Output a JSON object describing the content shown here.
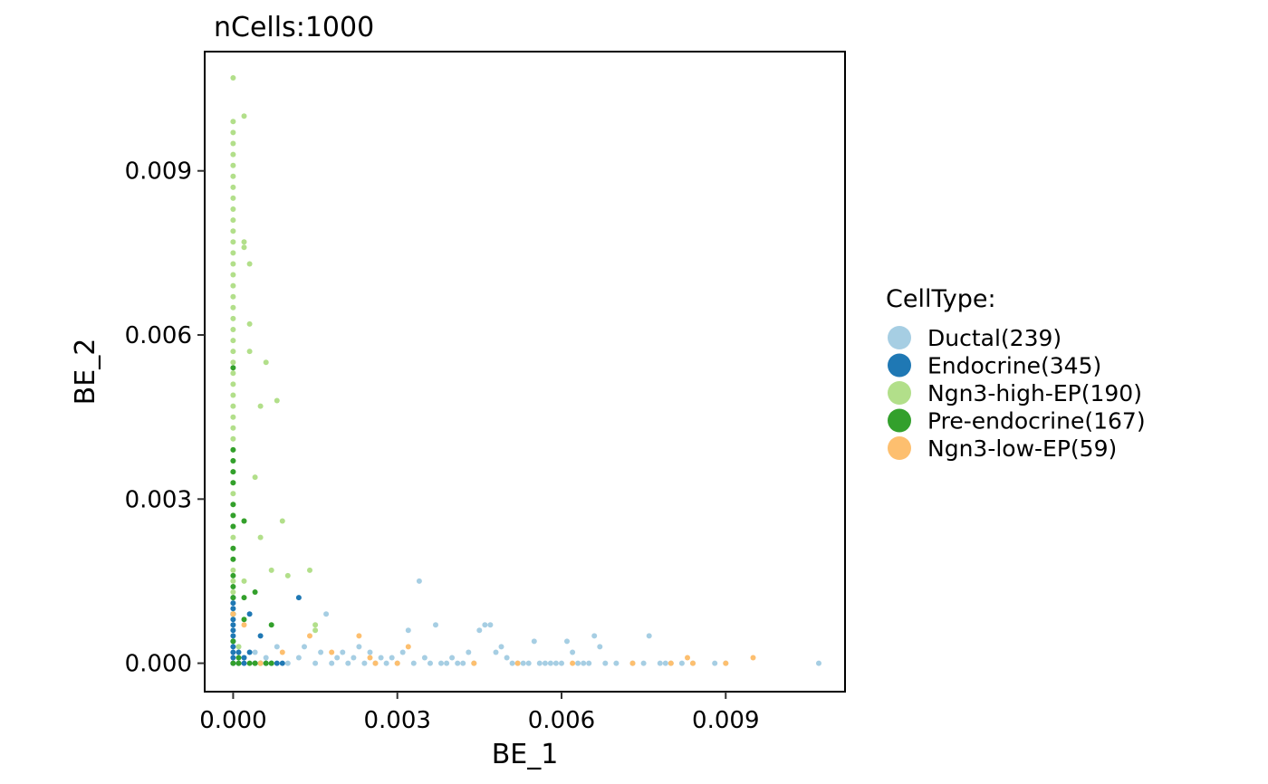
{
  "chart_data": {
    "type": "scatter",
    "title": "nCells:1000",
    "xlabel": "BE_1",
    "ylabel": "BE_2",
    "xlim": [
      -0.00052,
      0.01118
    ],
    "ylim": [
      -0.00052,
      0.01118
    ],
    "x_ticks": [
      0.0,
      0.003,
      0.006,
      0.009
    ],
    "y_ticks": [
      0.0,
      0.003,
      0.006,
      0.009
    ],
    "x_tick_labels": [
      "0.000",
      "0.003",
      "0.006",
      "0.009"
    ],
    "y_tick_labels": [
      "0.000",
      "0.003",
      "0.006",
      "0.009"
    ],
    "grid": false,
    "legend": {
      "title": "CellType:",
      "placement": "right"
    },
    "series": [
      {
        "name": "Ductal(239)",
        "color": "#A6CEE3",
        "points": [
          [
            0.0,
            0.0
          ],
          [
            0.0004,
            0.0002
          ],
          [
            0.0006,
            0.0001
          ],
          [
            0.0008,
            0.0003
          ],
          [
            0.001,
            0.0
          ],
          [
            0.0012,
            0.0001
          ],
          [
            0.0013,
            0.0003
          ],
          [
            0.0015,
            0.0
          ],
          [
            0.0016,
            0.0002
          ],
          [
            0.0017,
            0.0009
          ],
          [
            0.0018,
            0.0
          ],
          [
            0.0019,
            0.0001
          ],
          [
            0.002,
            0.0002
          ],
          [
            0.0021,
            0.0
          ],
          [
            0.0022,
            0.0001
          ],
          [
            0.0023,
            0.0003
          ],
          [
            0.0024,
            0.0
          ],
          [
            0.0025,
            0.0002
          ],
          [
            0.0026,
            0.0
          ],
          [
            0.0027,
            0.0001
          ],
          [
            0.0028,
            0.0
          ],
          [
            0.0029,
            0.0001
          ],
          [
            0.003,
            0.0
          ],
          [
            0.0031,
            0.0002
          ],
          [
            0.0032,
            0.0006
          ],
          [
            0.0033,
            0.0
          ],
          [
            0.0034,
            0.0015
          ],
          [
            0.0035,
            0.0001
          ],
          [
            0.0036,
            0.0
          ],
          [
            0.0037,
            0.0007
          ],
          [
            0.0038,
            0.0
          ],
          [
            0.0039,
            0.0
          ],
          [
            0.004,
            0.0001
          ],
          [
            0.0041,
            0.0
          ],
          [
            0.0042,
            0.0
          ],
          [
            0.0043,
            0.0002
          ],
          [
            0.0044,
            0.0
          ],
          [
            0.0045,
            0.0006
          ],
          [
            0.0046,
            0.0007
          ],
          [
            0.0047,
            0.0007
          ],
          [
            0.0048,
            0.0002
          ],
          [
            0.0049,
            0.0003
          ],
          [
            0.005,
            0.0001
          ],
          [
            0.0051,
            0.0
          ],
          [
            0.0052,
            0.0
          ],
          [
            0.0053,
            0.0
          ],
          [
            0.0054,
            0.0
          ],
          [
            0.0055,
            0.0004
          ],
          [
            0.0056,
            0.0
          ],
          [
            0.0057,
            0.0
          ],
          [
            0.0058,
            0.0
          ],
          [
            0.0059,
            0.0
          ],
          [
            0.006,
            0.0
          ],
          [
            0.0061,
            0.0004
          ],
          [
            0.0062,
            0.0002
          ],
          [
            0.0063,
            0.0
          ],
          [
            0.0064,
            0.0
          ],
          [
            0.0065,
            0.0
          ],
          [
            0.0066,
            0.0005
          ],
          [
            0.0067,
            0.0003
          ],
          [
            0.0068,
            0.0
          ],
          [
            0.007,
            0.0
          ],
          [
            0.0073,
            0.0
          ],
          [
            0.0075,
            0.0
          ],
          [
            0.0076,
            0.0005
          ],
          [
            0.0078,
            0.0
          ],
          [
            0.0079,
            0.0
          ],
          [
            0.008,
            0.0
          ],
          [
            0.0082,
            0.0
          ],
          [
            0.0084,
            0.0
          ],
          [
            0.0088,
            0.0
          ],
          [
            0.009,
            0.0
          ],
          [
            0.0107,
            0.0
          ],
          [
            0.0002,
            0.0001
          ],
          [
            0.0001,
            0.0003
          ]
        ]
      },
      {
        "name": "Endocrine(345)",
        "color": "#1F78B4",
        "points": [
          [
            0.0,
            0.0
          ],
          [
            0.0,
            0.0001
          ],
          [
            0.0,
            0.0002
          ],
          [
            0.0,
            0.0003
          ],
          [
            0.0,
            0.0004
          ],
          [
            0.0,
            0.0005
          ],
          [
            0.0,
            0.0006
          ],
          [
            0.0,
            0.0007
          ],
          [
            0.0,
            0.0008
          ],
          [
            0.0,
            0.0009
          ],
          [
            0.0,
            0.001
          ],
          [
            0.0,
            0.0011
          ],
          [
            0.0,
            0.0012
          ],
          [
            0.0001,
            0.0
          ],
          [
            0.0002,
            0.0001
          ],
          [
            0.0003,
            0.0002
          ],
          [
            0.0003,
            0.0009
          ],
          [
            0.0004,
            0.0
          ],
          [
            0.0005,
            0.0005
          ],
          [
            0.0006,
            0.0
          ],
          [
            0.0007,
            0.0
          ],
          [
            0.0008,
            0.0
          ],
          [
            0.0009,
            0.0
          ],
          [
            0.0012,
            0.0012
          ],
          [
            0.0002,
            0.0
          ],
          [
            0.0001,
            0.0002
          ]
        ]
      },
      {
        "name": "Ngn3-high-EP(190)",
        "color": "#B2DF8A",
        "points": [
          [
            0.0,
            0.0107
          ],
          [
            0.0,
            0.0099
          ],
          [
            0.0,
            0.0097
          ],
          [
            0.0,
            0.0095
          ],
          [
            0.0,
            0.0093
          ],
          [
            0.0,
            0.0091
          ],
          [
            0.0,
            0.0089
          ],
          [
            0.0,
            0.0087
          ],
          [
            0.0,
            0.0085
          ],
          [
            0.0,
            0.0083
          ],
          [
            0.0,
            0.0081
          ],
          [
            0.0,
            0.0079
          ],
          [
            0.0,
            0.0077
          ],
          [
            0.0,
            0.0075
          ],
          [
            0.0,
            0.0073
          ],
          [
            0.0,
            0.0071
          ],
          [
            0.0,
            0.0069
          ],
          [
            0.0,
            0.0067
          ],
          [
            0.0,
            0.0065
          ],
          [
            0.0,
            0.0063
          ],
          [
            0.0,
            0.0061
          ],
          [
            0.0,
            0.0059
          ],
          [
            0.0,
            0.0057
          ],
          [
            0.0,
            0.0055
          ],
          [
            0.0,
            0.0053
          ],
          [
            0.0,
            0.0051
          ],
          [
            0.0,
            0.0049
          ],
          [
            0.0,
            0.0047
          ],
          [
            0.0,
            0.0045
          ],
          [
            0.0,
            0.0043
          ],
          [
            0.0,
            0.0041
          ],
          [
            0.0,
            0.0039
          ],
          [
            0.0,
            0.0037
          ],
          [
            0.0,
            0.0035
          ],
          [
            0.0,
            0.0033
          ],
          [
            0.0,
            0.0031
          ],
          [
            0.0,
            0.0029
          ],
          [
            0.0,
            0.0027
          ],
          [
            0.0,
            0.0025
          ],
          [
            0.0,
            0.0023
          ],
          [
            0.0,
            0.0021
          ],
          [
            0.0,
            0.0019
          ],
          [
            0.0,
            0.0017
          ],
          [
            0.0,
            0.0015
          ],
          [
            0.0,
            0.0013
          ],
          [
            0.0002,
            0.01
          ],
          [
            0.0002,
            0.0077
          ],
          [
            0.0002,
            0.0076
          ],
          [
            0.0003,
            0.0073
          ],
          [
            0.0003,
            0.0062
          ],
          [
            0.0003,
            0.0057
          ],
          [
            0.0006,
            0.0055
          ],
          [
            0.0008,
            0.0048
          ],
          [
            0.0005,
            0.0047
          ],
          [
            0.0004,
            0.0034
          ],
          [
            0.0009,
            0.0026
          ],
          [
            0.0002,
            0.0026
          ],
          [
            0.0005,
            0.0023
          ],
          [
            0.0007,
            0.0017
          ],
          [
            0.001,
            0.0016
          ],
          [
            0.0014,
            0.0017
          ],
          [
            0.0002,
            0.0015
          ],
          [
            0.0015,
            0.0006
          ],
          [
            0.0015,
            0.0007
          ],
          [
            0.0001,
            0.0003
          ]
        ]
      },
      {
        "name": "Pre-endocrine(167)",
        "color": "#33A02C",
        "points": [
          [
            0.0,
            0.0054
          ],
          [
            0.0,
            0.0039
          ],
          [
            0.0,
            0.0037
          ],
          [
            0.0,
            0.0035
          ],
          [
            0.0,
            0.0033
          ],
          [
            0.0,
            0.0029
          ],
          [
            0.0,
            0.0027
          ],
          [
            0.0,
            0.0025
          ],
          [
            0.0,
            0.0021
          ],
          [
            0.0,
            0.0019
          ],
          [
            0.0,
            0.0016
          ],
          [
            0.0,
            0.0014
          ],
          [
            0.0,
            0.0012
          ],
          [
            0.0,
            0.0009
          ],
          [
            0.0,
            0.0004
          ],
          [
            0.0,
            0.0
          ],
          [
            0.0001,
            0.0
          ],
          [
            0.0002,
            0.0026
          ],
          [
            0.0002,
            0.0012
          ],
          [
            0.0002,
            0.0008
          ],
          [
            0.0004,
            0.0013
          ],
          [
            0.0004,
            0.0
          ],
          [
            0.0005,
            0.0
          ],
          [
            0.0006,
            0.0
          ],
          [
            0.0007,
            0.0007
          ],
          [
            0.0007,
            0.0
          ],
          [
            0.0003,
            0.0
          ],
          [
            0.0001,
            0.0001
          ]
        ]
      },
      {
        "name": "Ngn3-low-EP(59)",
        "color": "#FDBF6F",
        "points": [
          [
            0.0,
            0.0009
          ],
          [
            0.0002,
            0.0007
          ],
          [
            0.0009,
            0.0002
          ],
          [
            0.0014,
            0.0005
          ],
          [
            0.0018,
            0.0002
          ],
          [
            0.0023,
            0.0005
          ],
          [
            0.0025,
            0.0001
          ],
          [
            0.0026,
            0.0
          ],
          [
            0.0032,
            0.0003
          ],
          [
            0.0044,
            0.0
          ],
          [
            0.0052,
            0.0
          ],
          [
            0.0062,
            0.0
          ],
          [
            0.0073,
            0.0
          ],
          [
            0.008,
            0.0
          ],
          [
            0.0083,
            0.0001
          ],
          [
            0.0084,
            0.0
          ],
          [
            0.009,
            0.0
          ],
          [
            0.0095,
            0.0001
          ],
          [
            0.0005,
            0.0
          ],
          [
            0.003,
            0.0
          ]
        ]
      }
    ]
  }
}
